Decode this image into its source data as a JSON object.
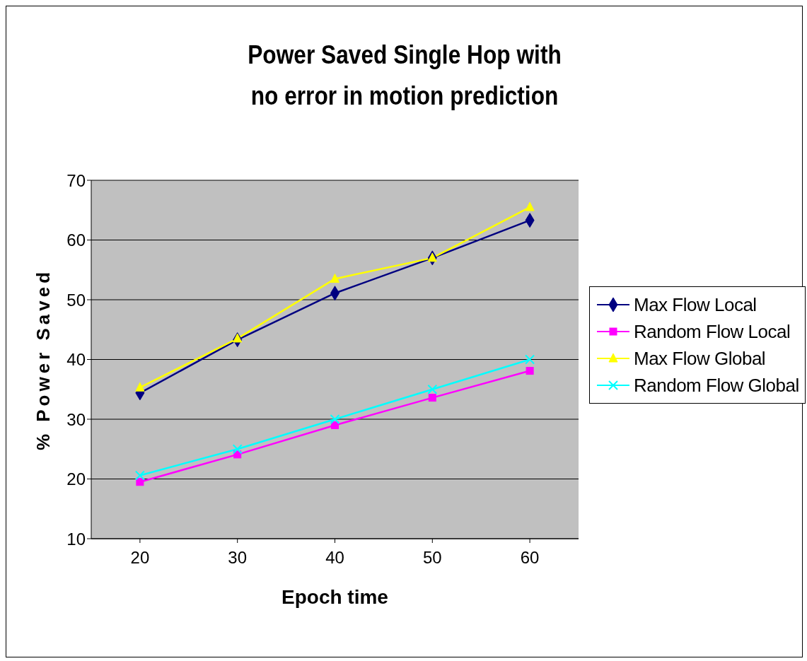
{
  "chart_data": {
    "type": "line",
    "title": "Power Saved Single Hop with no error in motion prediction",
    "xlabel": "Epoch time",
    "ylabel": "% Power Saved",
    "categories": [
      "20",
      "30",
      "40",
      "50",
      "60"
    ],
    "series": [
      {
        "name": "Max Flow Local",
        "color": "#000080",
        "marker": "diamond",
        "values": [
          34.4,
          43.3,
          51.1,
          57.0,
          63.3
        ]
      },
      {
        "name": "Random Flow Local",
        "color": "#ff00ff",
        "marker": "square",
        "values": [
          19.5,
          24.1,
          29.0,
          33.6,
          38.1
        ]
      },
      {
        "name": "Max Flow Global",
        "color": "#ffff00",
        "marker": "triangle",
        "values": [
          35.3,
          43.5,
          53.5,
          57.0,
          65.5
        ]
      },
      {
        "name": "Random Flow Global",
        "color": "#00ffff",
        "marker": "cross",
        "values": [
          20.6,
          25.0,
          30.0,
          35.0,
          40.0
        ]
      }
    ],
    "ylim": [
      10,
      70
    ],
    "yticks": [
      10,
      20,
      30,
      40,
      50,
      60,
      70
    ],
    "grid": "y",
    "legend": "right",
    "line_style": "solid"
  }
}
